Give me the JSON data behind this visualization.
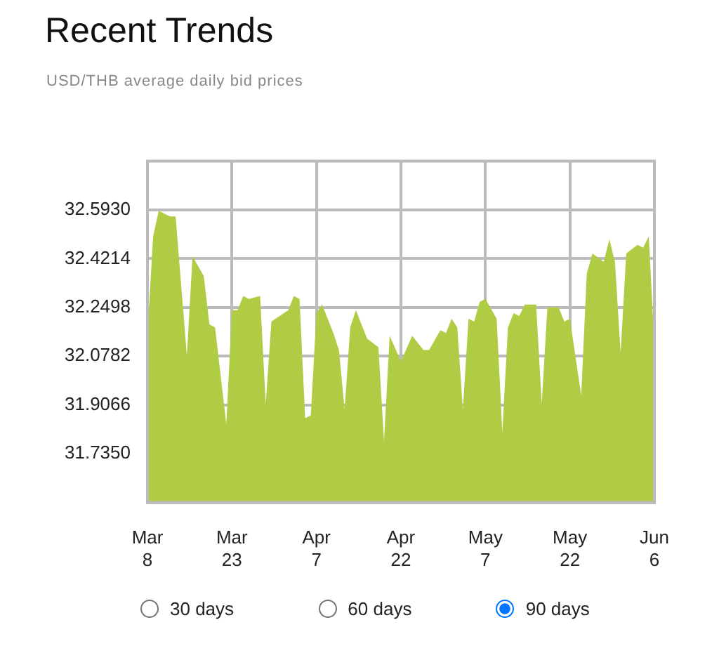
{
  "chart_data": {
    "type": "area",
    "title": "Recent Trends",
    "subtitle": "USD/THB average daily bid prices",
    "x": [
      "--03-08",
      "--03-09",
      "--03-10",
      "--03-12",
      "--03-13",
      "--03-15",
      "--03-16",
      "--03-18",
      "--03-19",
      "--03-20",
      "--03-22",
      "--03-23",
      "--03-24",
      "--03-25",
      "--03-26",
      "--03-28",
      "--03-29",
      "--03-30",
      "--04-02",
      "--04-03",
      "--04-04",
      "--04-05",
      "--04-06",
      "--04-07",
      "--04-08",
      "--04-10",
      "--04-11",
      "--04-12",
      "--04-13",
      "--04-14",
      "--04-16",
      "--04-18",
      "--04-19",
      "--04-20",
      "--04-22",
      "--04-24",
      "--04-26",
      "--04-27",
      "--04-29",
      "--04-30",
      "--05-01",
      "--05-02",
      "--05-03",
      "--05-04",
      "--05-05",
      "--05-06",
      "--05-07",
      "--05-09",
      "--05-10",
      "--05-11",
      "--05-12",
      "--05-13",
      "--05-14",
      "--05-16",
      "--05-17",
      "--05-18",
      "--05-19",
      "--05-20",
      "--05-21",
      "--05-22",
      "--05-24",
      "--05-25",
      "--05-26",
      "--05-28",
      "--05-29",
      "--05-30",
      "--05-31",
      "--06-01",
      "--06-03",
      "--06-04",
      "--06-05",
      "--06-06"
    ],
    "series": [
      {
        "color": "#b0cc45",
        "values": [
          32.15,
          32.5,
          32.59,
          32.57,
          32.57,
          32.08,
          32.43,
          32.36,
          32.19,
          32.18,
          31.84,
          32.24,
          32.24,
          32.29,
          32.28,
          32.29,
          31.91,
          32.2,
          32.24,
          32.29,
          32.28,
          31.86,
          31.87,
          32.23,
          32.26,
          32.16,
          32.1,
          31.89,
          32.18,
          32.24,
          32.14,
          32.11,
          31.78,
          32.15,
          32.06,
          32.15,
          32.1,
          32.1,
          32.17,
          32.16,
          32.21,
          32.18,
          31.89,
          32.21,
          32.2,
          32.27,
          32.28,
          32.21,
          31.81,
          32.18,
          32.23,
          32.22,
          32.26,
          32.26,
          31.91,
          32.25,
          32.25,
          32.25,
          32.2,
          32.21,
          31.94,
          32.37,
          32.44,
          32.41,
          32.49,
          32.41,
          32.09,
          32.44,
          32.47,
          32.46,
          32.5,
          32.12
        ]
      }
    ],
    "xlim": [
      "--03-08",
      "--06-06"
    ],
    "xticks": [
      {
        "value": "--03-08",
        "label": "Mar 8"
      },
      {
        "value": "--03-23",
        "label": "Mar 23"
      },
      {
        "value": "--04-07",
        "label": "Apr 7"
      },
      {
        "value": "--04-22",
        "label": "Apr 22"
      },
      {
        "value": "--05-07",
        "label": "May 7"
      },
      {
        "value": "--05-22",
        "label": "May 22"
      },
      {
        "value": "--06-06",
        "label": "Jun 6"
      }
    ],
    "ylim": [
      31.5634,
      32.7646
    ],
    "yticks": [
      {
        "value": 31.735,
        "label": "31.7350"
      },
      {
        "value": 31.9066,
        "label": "31.9066"
      },
      {
        "value": 32.0782,
        "label": "32.0782"
      },
      {
        "value": 32.2498,
        "label": "32.2498"
      },
      {
        "value": 32.4214,
        "label": "32.4214"
      },
      {
        "value": 32.593,
        "label": "32.5930"
      }
    ],
    "grid": true,
    "annotations": [
      "30 days",
      "60 days",
      "90 days"
    ]
  }
}
